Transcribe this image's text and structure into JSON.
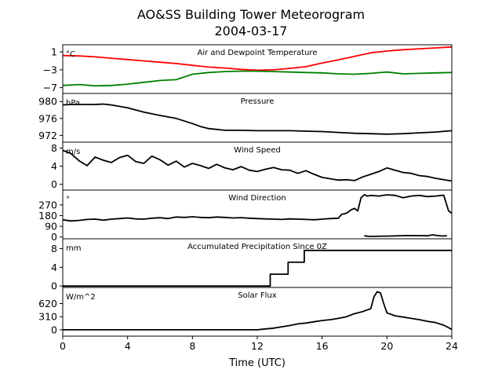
{
  "chart_data": {
    "type": "line",
    "title": "AO&SS Building Tower Meteorogram",
    "subtitle": "2004-03-17",
    "xlabel": "Time (UTC)",
    "xlim": [
      0,
      24
    ],
    "xticks": [
      0,
      4,
      8,
      12,
      16,
      20,
      24
    ],
    "colors": {
      "temperature": "#ff0000",
      "dewpoint": "#008000",
      "default": "#000000"
    },
    "panels": [
      {
        "title": "Air and Dewpoint Temperature",
        "unit": "°C",
        "ylim": [
          -8.3,
          2.6
        ],
        "yticks": [
          1,
          -3,
          -7
        ],
        "series": [
          {
            "color": "#ff0000",
            "x": [
              0,
              1,
              2,
              3,
              4,
              5,
              6,
              7,
              8,
              9,
              10,
              11,
              12,
              13,
              14,
              15,
              16,
              17,
              18,
              19,
              20,
              21,
              22,
              23,
              24
            ],
            "y": [
              0.2,
              0.1,
              -0.1,
              -0.4,
              -0.7,
              -1.0,
              -1.3,
              -1.6,
              -2.0,
              -2.4,
              -2.6,
              -2.9,
              -3.1,
              -3.0,
              -2.7,
              -2.3,
              -1.5,
              -0.8,
              0.0,
              0.8,
              1.2,
              1.5,
              1.7,
              1.9,
              2.1
            ]
          },
          {
            "color": "#008000",
            "x": [
              0,
              1,
              2,
              3,
              4,
              5,
              6,
              7,
              8,
              9,
              10,
              11,
              12,
              13,
              14,
              15,
              16,
              17,
              18,
              19,
              20,
              21,
              22,
              23,
              24
            ],
            "y": [
              -6.5,
              -6.3,
              -6.6,
              -6.5,
              -6.2,
              -5.8,
              -5.4,
              -5.2,
              -4.0,
              -3.6,
              -3.4,
              -3.3,
              -3.3,
              -3.4,
              -3.5,
              -3.6,
              -3.7,
              -3.9,
              -4.0,
              -3.8,
              -3.5,
              -3.9,
              -3.8,
              -3.7,
              -3.6
            ]
          }
        ]
      },
      {
        "title": "Pressure",
        "unit": "hPa",
        "ylim": [
          970.4,
          981.9
        ],
        "yticks": [
          980,
          976,
          972
        ],
        "series": [
          {
            "color": "#000000",
            "x": [
              0,
              0.5,
              1,
              2,
              2.5,
              3,
              4,
              5,
              6,
              7,
              8,
              8.5,
              9,
              10,
              11,
              12,
              13,
              14,
              15,
              16,
              17,
              18,
              19,
              20,
              21,
              22,
              23,
              24
            ],
            "y": [
              979.2,
              979.3,
              979.3,
              979.3,
              979.4,
              979.2,
              978.5,
              977.5,
              976.7,
              976.0,
              974.8,
              974.1,
              973.6,
              973.2,
              973.2,
              973.1,
              973.1,
              973.1,
              973.0,
              972.9,
              972.7,
              972.5,
              972.4,
              972.3,
              972.4,
              972.6,
              972.8,
              973.1
            ]
          }
        ]
      },
      {
        "title": "Wind Speed",
        "unit": "m/s",
        "ylim": [
          -1.3,
          9.3
        ],
        "yticks": [
          8,
          4,
          0
        ],
        "series": [
          {
            "color": "#000000",
            "x": [
              0,
              0.5,
              1,
              1.5,
              2,
              2.5,
              3,
              3.5,
              4,
              4.5,
              5,
              5.5,
              6,
              6.5,
              7,
              7.5,
              8,
              8.5,
              9,
              9.5,
              10,
              10.5,
              11,
              11.5,
              12,
              12.5,
              13,
              13.5,
              14,
              14.5,
              15,
              15.5,
              16,
              16.5,
              17,
              17.5,
              18,
              18.5,
              19,
              19.5,
              20,
              20.5,
              21,
              21.5,
              22,
              22.5,
              23,
              23.5,
              24
            ],
            "y": [
              7.5,
              6.8,
              5.2,
              4.1,
              6.0,
              5.3,
              4.8,
              5.9,
              6.4,
              5.0,
              4.6,
              6.2,
              5.4,
              4.2,
              5.1,
              3.8,
              4.6,
              4.1,
              3.5,
              4.4,
              3.6,
              3.2,
              3.9,
              3.1,
              2.8,
              3.3,
              3.7,
              3.2,
              3.1,
              2.4,
              3.0,
              2.2,
              1.5,
              1.2,
              0.9,
              1.0,
              0.8,
              1.6,
              2.2,
              2.8,
              3.6,
              3.1,
              2.6,
              2.4,
              1.9,
              1.7,
              1.3,
              1.0,
              0.7
            ]
          }
        ]
      },
      {
        "title": "Wind Direction",
        "unit": "°",
        "ylim": [
          -15,
          395
        ],
        "yticks": [
          270,
          180,
          90,
          0
        ],
        "series": [
          {
            "color": "#000000",
            "x": [
              0,
              0.5,
              1,
              1.5,
              2,
              2.5,
              3,
              3.5,
              4,
              4.5,
              5,
              5.5,
              6,
              6.5,
              7,
              7.5,
              8,
              8.5,
              9,
              9.5,
              10,
              10.5,
              11,
              11.5,
              12,
              12.5,
              13,
              13.5,
              14,
              14.5,
              15,
              15.5,
              16,
              16.5,
              17,
              17.2,
              17.5,
              17.8,
              18.0,
              18.2,
              18.4,
              18.6,
              18.8,
              19,
              19.5,
              20,
              20.5,
              21,
              21.5,
              22,
              22.5,
              23,
              23.5,
              23.8,
              24
            ],
            "y": [
              145,
              135,
              140,
              148,
              150,
              142,
              150,
              155,
              160,
              152,
              150,
              158,
              162,
              155,
              168,
              165,
              170,
              165,
              162,
              168,
              165,
              160,
              163,
              158,
              155,
              152,
              150,
              148,
              152,
              150,
              148,
              145,
              150,
              155,
              158,
              190,
              200,
              230,
              240,
              220,
              330,
              355,
              345,
              350,
              345,
              355,
              350,
              330,
              345,
              350,
              340,
              345,
              352,
              220,
              200
            ]
          },
          {
            "color": "#000000",
            "x": [
              18.6,
              18.9,
              20.3,
              21.2,
              22.5,
              22.8,
              23.1,
              23.4,
              23.7
            ],
            "y": [
              10,
              5,
              8,
              12,
              10,
              18,
              12,
              8,
              10
            ]
          }
        ]
      },
      {
        "title": "Accumulated Precipitation Since 0Z",
        "unit": "mm",
        "ylim": [
          -0.3,
          10.1
        ],
        "yticks": [
          8,
          4,
          0
        ],
        "series": [
          {
            "color": "#000000",
            "x": [
              0,
              12.8,
              12.8,
              13.9,
              13.9,
              14.9,
              14.9,
              24
            ],
            "y": [
              0,
              0,
              2.54,
              2.54,
              5.08,
              5.08,
              7.62,
              7.62
            ]
          }
        ]
      },
      {
        "title": "Solar Flux",
        "unit": "W/m^2",
        "ylim": [
          -150,
          1000
        ],
        "yticks": [
          620,
          310,
          0
        ],
        "series": [
          {
            "color": "#000000",
            "x": [
              0,
              12,
              12.5,
              13,
              13.5,
              14,
              14.5,
              15,
              15.5,
              16,
              16.5,
              17,
              17.5,
              18,
              18.5,
              19,
              19.2,
              19.4,
              19.6,
              19.8,
              20,
              20.5,
              21,
              21.5,
              22,
              22.5,
              23,
              23.5,
              24
            ],
            "y": [
              0,
              0,
              20,
              40,
              70,
              100,
              140,
              160,
              190,
              220,
              240,
              270,
              310,
              380,
              430,
              500,
              780,
              900,
              870,
              620,
              400,
              330,
              300,
              270,
              240,
              200,
              170,
              110,
              10
            ]
          }
        ]
      }
    ]
  }
}
